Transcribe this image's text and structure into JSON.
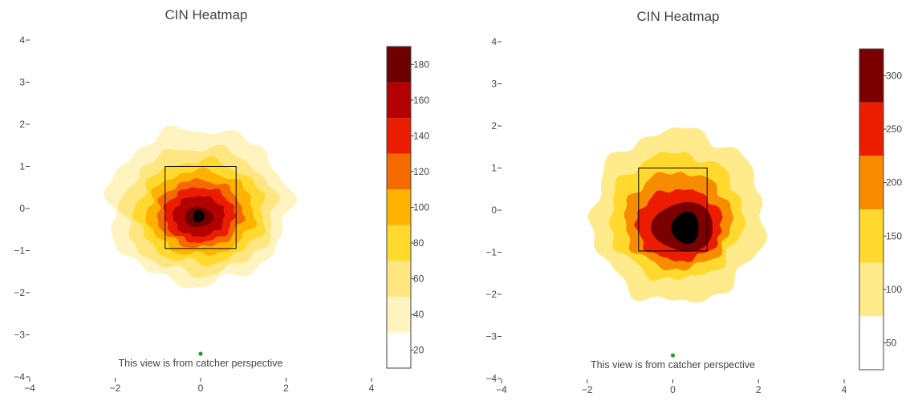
{
  "chart_data": [
    {
      "type": "heatmap",
      "subtype": "contour",
      "title": "CIN Heatmap",
      "annotation": "This view is from catcher perspective",
      "xlim": [
        -4,
        4
      ],
      "ylim": [
        -4,
        4
      ],
      "x_ticks": [
        -4,
        -2,
        0,
        2,
        4
      ],
      "y_ticks": [
        -4,
        -3,
        -2,
        -1,
        0,
        1,
        2,
        3,
        4
      ],
      "x_tick_labels": [
        "−4",
        "−2",
        "0",
        "2",
        "4"
      ],
      "y_tick_labels": [
        "−4",
        "−3",
        "−2",
        "−1",
        "0",
        "1",
        "2",
        "3",
        "4"
      ],
      "strike_zone": {
        "x": [
          -0.83,
          0.83
        ],
        "y": [
          -0.95,
          1.0
        ]
      },
      "catcher_marker": {
        "x": 0,
        "y": -3.45,
        "color": "#2ca02c"
      },
      "peak": {
        "x": -0.05,
        "y": -0.2
      },
      "colorbar": {
        "min": 10,
        "max": 190,
        "levels": [
          10,
          30,
          50,
          70,
          90,
          110,
          130,
          150,
          170,
          190
        ],
        "colors": [
          "#ffffff",
          "#fff4c0",
          "#ffe680",
          "#ffd92e",
          "#ffb300",
          "#f56a00",
          "#eb1d00",
          "#b30000",
          "#6e0000",
          "#000000"
        ],
        "ticks": [
          20,
          40,
          60,
          80,
          100,
          120,
          140,
          160,
          180
        ]
      },
      "contours": [
        {
          "level": 1,
          "cx": -0.05,
          "cy": 0.05,
          "rx": 2.12,
          "ry": 1.85
        },
        {
          "level": 2,
          "cx": -0.03,
          "cy": -0.05,
          "rx": 1.78,
          "ry": 1.5
        },
        {
          "level": 3,
          "cx": 0.0,
          "cy": -0.08,
          "rx": 1.5,
          "ry": 1.22
        },
        {
          "level": 4,
          "cx": 0.0,
          "cy": -0.1,
          "rx": 1.25,
          "ry": 1.0
        },
        {
          "level": 5,
          "cx": -0.02,
          "cy": -0.12,
          "rx": 1.0,
          "ry": 0.8
        },
        {
          "level": 6,
          "cx": -0.03,
          "cy": -0.15,
          "rx": 0.82,
          "ry": 0.65
        },
        {
          "level": 7,
          "cx": -0.04,
          "cy": -0.18,
          "rx": 0.6,
          "ry": 0.48
        },
        {
          "level": 8,
          "cx": -0.05,
          "cy": -0.2,
          "rx": 0.33,
          "ry": 0.24
        },
        {
          "level": 9,
          "cx": -0.05,
          "cy": -0.18,
          "rx": 0.13,
          "ry": 0.15
        }
      ]
    },
    {
      "type": "heatmap",
      "subtype": "contour",
      "title": "CIN Heatmap",
      "annotation": "This view is from catcher perspective",
      "xlim": [
        -4,
        4
      ],
      "ylim": [
        -4,
        4
      ],
      "x_ticks": [
        -4,
        -2,
        0,
        2,
        4
      ],
      "y_ticks": [
        -4,
        -3,
        -2,
        -1,
        0,
        1,
        2,
        3,
        4
      ],
      "x_tick_labels": [
        "−4",
        "−2",
        "0",
        "2",
        "4"
      ],
      "y_tick_labels": [
        "−4",
        "−3",
        "−2",
        "−1",
        "0",
        "1",
        "2",
        "3",
        "4"
      ],
      "strike_zone": {
        "x": [
          -0.8,
          0.8
        ],
        "y": [
          -0.97,
          1.0
        ]
      },
      "catcher_marker": {
        "x": 0,
        "y": -3.45,
        "color": "#2ca02c"
      },
      "peak": {
        "x": 0.3,
        "y": -0.4
      },
      "colorbar": {
        "min": 25,
        "max": 325,
        "levels": [
          25,
          75,
          125,
          175,
          225,
          275,
          325
        ],
        "colors": [
          "#ffffff",
          "#ffea8c",
          "#ffd92e",
          "#f78c00",
          "#eb1d00",
          "#7a0000",
          "#000000"
        ],
        "ticks": [
          50,
          100,
          150,
          200,
          250,
          300
        ]
      },
      "contours": [
        {
          "level": 1,
          "cx": 0.12,
          "cy": -0.15,
          "rx": 2.0,
          "ry": 2.05
        },
        {
          "level": 2,
          "cx": 0.08,
          "cy": -0.15,
          "rx": 1.55,
          "ry": 1.5
        },
        {
          "level": 3,
          "cx": 0.12,
          "cy": -0.25,
          "rx": 1.25,
          "ry": 1.15
        },
        {
          "level": 4,
          "cx": 0.15,
          "cy": -0.35,
          "rx": 1.0,
          "ry": 0.85
        },
        {
          "level": 5,
          "cx": 0.25,
          "cy": -0.4,
          "rx": 0.72,
          "ry": 0.58
        },
        {
          "level": 6,
          "cx": 0.3,
          "cy": -0.42,
          "rx": 0.32,
          "ry": 0.38
        }
      ]
    }
  ]
}
